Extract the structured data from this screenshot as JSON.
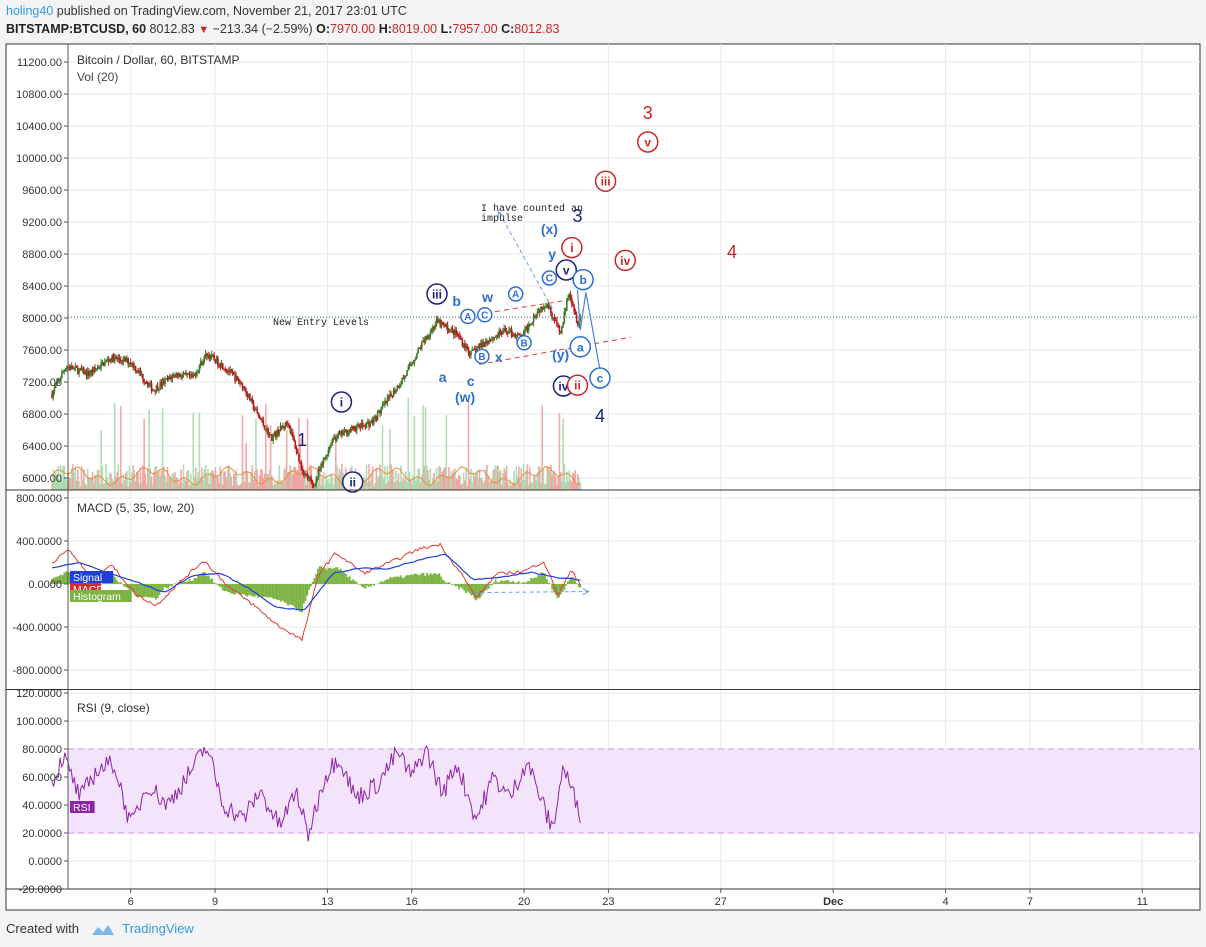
{
  "header": {
    "author": "holing40",
    "published_text": "published on TradingView.com, November 21, 2017 23:01 UTC",
    "symbol": "BITSTAMP:BTCUSD, 60",
    "last": "8012.83",
    "change": "−213.34 (−2.59%)",
    "o_label": "O:",
    "o_value": "7970.00",
    "h_label": "H:",
    "h_value": "8019.00",
    "l_label": "L:",
    "l_value": "7957.00",
    "c_label": "C:",
    "c_value": "8012.83"
  },
  "footer": {
    "created_with": "Created with",
    "brand": "TradingView"
  },
  "colors": {
    "up": "#3a7d2a",
    "down": "#b71c1c",
    "macd": "#e53935",
    "signal": "#1e40d8",
    "hist": "#7cb342",
    "rsi": "#8e24aa",
    "rsi_band": "#f3e3fb",
    "wave_dark": "#1a237e",
    "wave_blue": "#2f6fd0",
    "wave_red": "#c62828"
  },
  "chart_data": {
    "type": "candlestick",
    "panes": {
      "price": {
        "title": "Bitcoin / Dollar, 60, BITSTAMP",
        "subtitle": "Vol (20)",
        "y_ticks": [
          "11200.00",
          "10800.00",
          "10400.00",
          "10000.00",
          "9600.00",
          "9200.00",
          "8800.00",
          "8400.00",
          "8000.00",
          "7600.00",
          "7200.00",
          "6800.00",
          "6400.00",
          "6000.00"
        ],
        "ylim": [
          5850,
          11400
        ],
        "current_price": 8012.83,
        "approx_path": [
          {
            "day": 3.2,
            "price": 7050
          },
          {
            "day": 3.7,
            "price": 7400
          },
          {
            "day": 4.5,
            "price": 7300
          },
          {
            "day": 5.3,
            "price": 7500
          },
          {
            "day": 6.0,
            "price": 7450
          },
          {
            "day": 6.8,
            "price": 7100
          },
          {
            "day": 7.6,
            "price": 7300
          },
          {
            "day": 8.2,
            "price": 7250
          },
          {
            "day": 8.7,
            "price": 7550
          },
          {
            "day": 9.3,
            "price": 7400
          },
          {
            "day": 10.0,
            "price": 7150
          },
          {
            "day": 10.5,
            "price": 6800
          },
          {
            "day": 11.0,
            "price": 6500
          },
          {
            "day": 11.6,
            "price": 6700
          },
          {
            "day": 12.1,
            "price": 6100
          },
          {
            "day": 12.5,
            "price": 5900
          },
          {
            "day": 13.2,
            "price": 6500
          },
          {
            "day": 13.8,
            "price": 6600
          },
          {
            "day": 14.6,
            "price": 6700
          },
          {
            "day": 15.2,
            "price": 7000
          },
          {
            "day": 15.8,
            "price": 7300
          },
          {
            "day": 16.4,
            "price": 7700
          },
          {
            "day": 16.9,
            "price": 7950
          },
          {
            "day": 17.6,
            "price": 7800
          },
          {
            "day": 18.1,
            "price": 7550
          },
          {
            "day": 18.6,
            "price": 7700
          },
          {
            "day": 19.4,
            "price": 7850
          },
          {
            "day": 19.9,
            "price": 7750
          },
          {
            "day": 20.4,
            "price": 8050
          },
          {
            "day": 20.8,
            "price": 8200
          },
          {
            "day": 21.3,
            "price": 7800
          },
          {
            "day": 21.6,
            "price": 8350
          },
          {
            "day": 21.9,
            "price": 7950
          },
          {
            "day": 22.0,
            "price": 8012.83
          }
        ]
      },
      "macd": {
        "title": "MACD (5, 35, low, 20)",
        "y_ticks": [
          "800.0000",
          "400.0000",
          "0.0000",
          "-400.0000",
          "-800.0000"
        ],
        "ylim": [
          -950,
          850
        ],
        "legend": [
          "Signal",
          "MACD",
          "Histogram"
        ],
        "macd_path": [
          {
            "day": 3.2,
            "v": 200
          },
          {
            "day": 3.8,
            "v": 320
          },
          {
            "day": 4.6,
            "v": 50
          },
          {
            "day": 5.3,
            "v": 180
          },
          {
            "day": 6.2,
            "v": -100
          },
          {
            "day": 6.9,
            "v": -200
          },
          {
            "day": 7.8,
            "v": 30
          },
          {
            "day": 8.6,
            "v": 220
          },
          {
            "day": 9.5,
            "v": -30
          },
          {
            "day": 10.4,
            "v": -200
          },
          {
            "day": 11.2,
            "v": -380
          },
          {
            "day": 12.1,
            "v": -520
          },
          {
            "day": 12.7,
            "v": 100
          },
          {
            "day": 13.3,
            "v": 290
          },
          {
            "day": 14.3,
            "v": 100
          },
          {
            "day": 15.4,
            "v": 220
          },
          {
            "day": 16.2,
            "v": 320
          },
          {
            "day": 17.0,
            "v": 370
          },
          {
            "day": 17.8,
            "v": 80
          },
          {
            "day": 18.3,
            "v": -130
          },
          {
            "day": 19.0,
            "v": 90
          },
          {
            "day": 20.0,
            "v": 120
          },
          {
            "day": 20.7,
            "v": 210
          },
          {
            "day": 21.2,
            "v": -100
          },
          {
            "day": 21.7,
            "v": 130
          },
          {
            "day": 22.0,
            "v": 0
          }
        ],
        "signal_path": [
          {
            "day": 3.2,
            "v": 150
          },
          {
            "day": 4.2,
            "v": 200
          },
          {
            "day": 5.2,
            "v": 100
          },
          {
            "day": 6.2,
            "v": 20
          },
          {
            "day": 7.2,
            "v": -80
          },
          {
            "day": 8.2,
            "v": 80
          },
          {
            "day": 9.2,
            "v": 100
          },
          {
            "day": 10.2,
            "v": -40
          },
          {
            "day": 11.2,
            "v": -220
          },
          {
            "day": 12.2,
            "v": -240
          },
          {
            "day": 13.2,
            "v": 100
          },
          {
            "day": 14.2,
            "v": 150
          },
          {
            "day": 15.2,
            "v": 140
          },
          {
            "day": 16.2,
            "v": 220
          },
          {
            "day": 17.2,
            "v": 280
          },
          {
            "day": 18.2,
            "v": 40
          },
          {
            "day": 19.2,
            "v": 60
          },
          {
            "day": 20.2,
            "v": 110
          },
          {
            "day": 21.2,
            "v": 60
          },
          {
            "day": 22.0,
            "v": 40
          }
        ]
      },
      "rsi": {
        "title": "RSI (9, close)",
        "y_ticks": [
          "120.0000",
          "100.0000",
          "80.0000",
          "60.0000",
          "40.0000",
          "20.0000",
          "0.0000",
          "-20.0000"
        ],
        "ylim": [
          -20,
          120
        ],
        "band": [
          20,
          80
        ],
        "legend": [
          "RSI"
        ],
        "approx_path": [
          {
            "day": 3.2,
            "v": 55
          },
          {
            "day": 3.6,
            "v": 75
          },
          {
            "day": 4.2,
            "v": 45
          },
          {
            "day": 4.8,
            "v": 65
          },
          {
            "day": 5.4,
            "v": 70
          },
          {
            "day": 6.0,
            "v": 25
          },
          {
            "day": 6.6,
            "v": 55
          },
          {
            "day": 7.3,
            "v": 40
          },
          {
            "day": 8.0,
            "v": 60
          },
          {
            "day": 8.7,
            "v": 82
          },
          {
            "day": 9.3,
            "v": 40
          },
          {
            "day": 10.0,
            "v": 30
          },
          {
            "day": 10.6,
            "v": 50
          },
          {
            "day": 11.3,
            "v": 25
          },
          {
            "day": 11.9,
            "v": 50
          },
          {
            "day": 12.3,
            "v": 18
          },
          {
            "day": 12.9,
            "v": 60
          },
          {
            "day": 13.4,
            "v": 75
          },
          {
            "day": 14.0,
            "v": 45
          },
          {
            "day": 14.8,
            "v": 55
          },
          {
            "day": 15.5,
            "v": 78
          },
          {
            "day": 16.0,
            "v": 60
          },
          {
            "day": 16.5,
            "v": 80
          },
          {
            "day": 17.1,
            "v": 48
          },
          {
            "day": 17.6,
            "v": 70
          },
          {
            "day": 18.3,
            "v": 30
          },
          {
            "day": 18.9,
            "v": 60
          },
          {
            "day": 19.5,
            "v": 45
          },
          {
            "day": 20.1,
            "v": 72
          },
          {
            "day": 20.5,
            "v": 50
          },
          {
            "day": 21.0,
            "v": 22
          },
          {
            "day": 21.4,
            "v": 68
          },
          {
            "day": 21.7,
            "v": 50
          },
          {
            "day": 22.0,
            "v": 34
          }
        ]
      }
    },
    "x_axis": {
      "ticks": [
        {
          "label": "6",
          "day": 6
        },
        {
          "label": "9",
          "day": 9
        },
        {
          "label": "13",
          "day": 13
        },
        {
          "label": "16",
          "day": 16
        },
        {
          "label": "20",
          "day": 20
        },
        {
          "label": "23",
          "day": 23
        },
        {
          "label": "27",
          "day": 27
        },
        {
          "label": "Dec",
          "day": 31
        },
        {
          "label": "4",
          "day": 35
        },
        {
          "label": "7",
          "day": 38
        },
        {
          "label": "11",
          "day": 42
        }
      ]
    },
    "annotations": {
      "entry_text": "New Entry Levels",
      "note_line1": "I have counted an",
      "note_line2": "impulse",
      "wave_labels": [
        {
          "text": "1",
          "day": 12.1,
          "price": 6400,
          "style": "dark_plain"
        },
        {
          "text": "i",
          "day": 13.5,
          "price": 6950,
          "style": "dark_circle"
        },
        {
          "text": "ii",
          "day": 13.9,
          "price": 5950,
          "style": "dark_circle"
        },
        {
          "text": "iii",
          "day": 16.9,
          "price": 8300,
          "style": "dark_circle"
        },
        {
          "text": "a",
          "day": 17.1,
          "price": 7200,
          "style": "blue_plain"
        },
        {
          "text": "b",
          "day": 17.6,
          "price": 8150,
          "style": "blue_plain"
        },
        {
          "text": "c",
          "day": 18.1,
          "price": 7150,
          "style": "blue_plain"
        },
        {
          "text": "(w)",
          "day": 17.9,
          "price": 6950,
          "style": "blue_plain"
        },
        {
          "text": "A",
          "day": 18.0,
          "price": 8020,
          "style": "blue_circle_small"
        },
        {
          "text": "C",
          "day": 18.6,
          "price": 8040,
          "style": "blue_circle_small"
        },
        {
          "text": "w",
          "day": 18.7,
          "price": 8200,
          "style": "blue_plain"
        },
        {
          "text": "B",
          "day": 18.5,
          "price": 7520,
          "style": "blue_circle_small"
        },
        {
          "text": "x",
          "day": 19.1,
          "price": 7450,
          "style": "blue_plain"
        },
        {
          "text": "A",
          "day": 19.7,
          "price": 8300,
          "style": "blue_circle_small"
        },
        {
          "text": "B",
          "day": 20.0,
          "price": 7690,
          "style": "blue_circle_small"
        },
        {
          "text": "C",
          "day": 20.9,
          "price": 8500,
          "style": "blue_circle_small"
        },
        {
          "text": "(x)",
          "day": 20.9,
          "price": 9050,
          "style": "blue_plain"
        },
        {
          "text": "y",
          "day": 21.0,
          "price": 8740,
          "style": "blue_plain"
        },
        {
          "text": "v",
          "day": 21.5,
          "price": 8600,
          "style": "dark_circle"
        },
        {
          "text": "3",
          "day": 21.9,
          "price": 9200,
          "style": "dark_plain"
        },
        {
          "text": "i",
          "day": 21.7,
          "price": 8880,
          "style": "red_circle"
        },
        {
          "text": "b",
          "day": 22.1,
          "price": 8480,
          "style": "blue_circle"
        },
        {
          "text": "a",
          "day": 22.0,
          "price": 7640,
          "style": "blue_circle"
        },
        {
          "text": "(y)",
          "day": 21.3,
          "price": 7480,
          "style": "blue_plain"
        },
        {
          "text": "iv",
          "day": 21.4,
          "price": 7150,
          "style": "dark_circle"
        },
        {
          "text": "ii",
          "day": 21.9,
          "price": 7160,
          "style": "red_circle"
        },
        {
          "text": "c",
          "day": 22.7,
          "price": 7250,
          "style": "blue_circle"
        },
        {
          "text": "4",
          "day": 22.7,
          "price": 6700,
          "style": "dark_plain"
        },
        {
          "text": "iii",
          "day": 22.9,
          "price": 9710,
          "style": "red_circle"
        },
        {
          "text": "iv",
          "day": 23.6,
          "price": 8720,
          "style": "red_circle"
        },
        {
          "text": "v",
          "day": 24.4,
          "price": 10200,
          "style": "red_circle"
        },
        {
          "text": "3",
          "day": 24.4,
          "price": 10490,
          "style": "red_plain"
        },
        {
          "text": "4",
          "day": 27.4,
          "price": 8750,
          "style": "red_plain"
        }
      ]
    }
  }
}
